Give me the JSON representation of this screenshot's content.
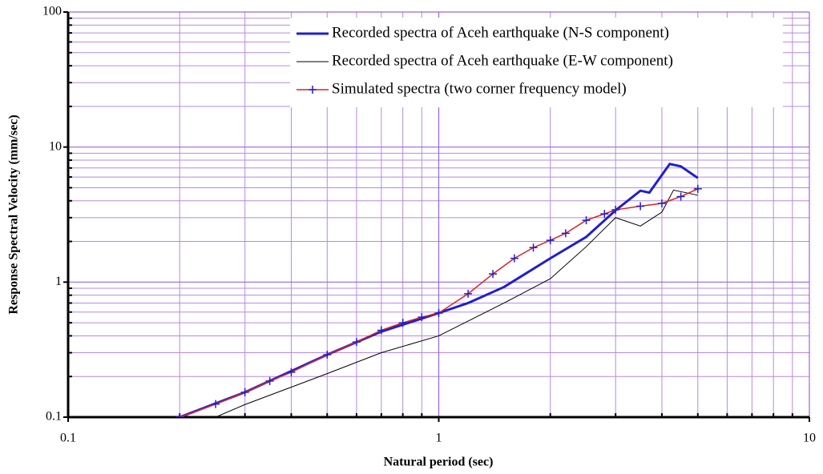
{
  "chart_data": {
    "type": "line",
    "xlabel": "Natural period (sec)",
    "ylabel": "Response Spectral Velocity (mm/sec)",
    "xscale": "log",
    "yscale": "log",
    "grid": true,
    "legend": "upper right",
    "xlim": [
      0.1,
      10
    ],
    "ylim": [
      0.1,
      100
    ],
    "xticks": [
      0.1,
      1,
      10
    ],
    "yticks": [
      0.1,
      1,
      10,
      100
    ],
    "xminor": [
      0.2,
      0.3,
      0.4,
      0.5,
      0.6,
      0.7,
      0.8,
      0.9,
      2,
      3,
      4,
      5,
      6,
      7,
      8,
      9
    ],
    "yminor": [
      0.2,
      0.3,
      0.4,
      0.5,
      0.6,
      0.7,
      0.8,
      0.9,
      2,
      3,
      4,
      5,
      6,
      7,
      8,
      9,
      20,
      30,
      40,
      50,
      60,
      70,
      80,
      90
    ],
    "series": [
      {
        "name": "Recorded spectra of Aceh earthquake (N-S component)",
        "color": "#1f1fd0",
        "x": [
          0.2,
          0.3,
          0.5,
          0.7,
          1.0,
          1.2,
          1.5,
          2.0,
          2.5,
          3.0,
          3.5,
          3.7,
          4.2,
          4.5,
          5.0
        ],
        "values": [
          0.1,
          0.153,
          0.29,
          0.43,
          0.59,
          0.7,
          0.92,
          1.5,
          2.16,
          3.4,
          4.75,
          4.6,
          7.5,
          7.2,
          5.9
        ]
      },
      {
        "name": "Recorded spectra of Aceh earthquake (E-W component)",
        "color": "#000000",
        "x": [
          0.25,
          0.3,
          0.5,
          0.7,
          1.0,
          1.5,
          2.0,
          2.5,
          3.0,
          3.5,
          4.0,
          4.3,
          5.0
        ],
        "values": [
          0.1,
          0.124,
          0.21,
          0.3,
          0.4,
          0.7,
          1.06,
          1.83,
          3.0,
          2.6,
          3.3,
          4.8,
          4.4
        ]
      },
      {
        "name": "Simulated spectra (two corner frequency model)",
        "color": "#e02020",
        "marker_color": "#1f1fd0",
        "x": [
          0.2,
          0.25,
          0.3,
          0.35,
          0.4,
          0.5,
          0.6,
          0.7,
          0.8,
          0.9,
          1.0,
          1.2,
          1.4,
          1.6,
          1.8,
          2.0,
          2.2,
          2.5,
          2.8,
          3.0,
          3.5,
          4.0,
          4.5,
          5.0
        ],
        "values": [
          0.1,
          0.125,
          0.153,
          0.185,
          0.215,
          0.29,
          0.36,
          0.44,
          0.5,
          0.55,
          0.59,
          0.82,
          1.15,
          1.5,
          1.8,
          2.04,
          2.3,
          2.87,
          3.2,
          3.43,
          3.65,
          3.83,
          4.3,
          4.9
        ]
      }
    ]
  }
}
